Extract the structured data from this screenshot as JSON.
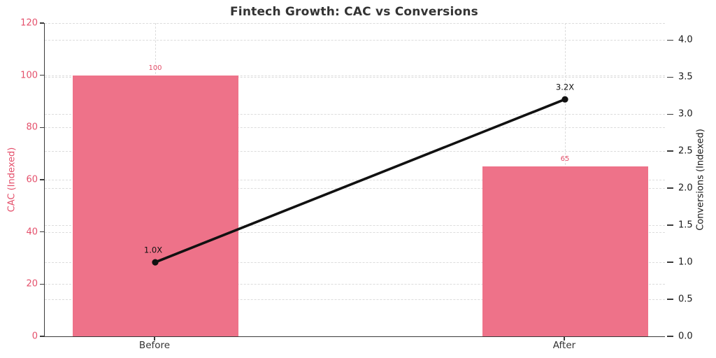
{
  "title": "Fintech Growth: CAC vs Conversions",
  "chart_data": {
    "type": "bar",
    "subtype": "combo-bar-line-dual-axis",
    "categories": [
      "Before",
      "After"
    ],
    "series": [
      {
        "name": "CAC (Indexed)",
        "type": "bar",
        "axis": "left",
        "values": [
          100,
          65
        ],
        "value_labels": [
          "100",
          "65"
        ],
        "color": "#ee7289"
      },
      {
        "name": "Conversions (Indexed)",
        "type": "line",
        "axis": "right",
        "values": [
          1.0,
          3.2
        ],
        "annotations": [
          "1.0X",
          "3.2X"
        ],
        "color": "#111111",
        "marker": "circle"
      }
    ],
    "left_axis": {
      "label": "CAC (Indexed)",
      "ticks": [
        0,
        20,
        40,
        60,
        80,
        100,
        120
      ],
      "ylim": [
        0,
        120
      ],
      "text_color": "#e4506b"
    },
    "right_axis": {
      "label": "Conversions (Indexed)",
      "ticks": [
        "0.0",
        "0.5",
        "1.0",
        "1.5",
        "2.0",
        "2.5",
        "3.0",
        "3.5",
        "4.0"
      ],
      "ylim": [
        0,
        4.23
      ],
      "text_color": "#1a1a1a"
    },
    "grid": "dashed horizontal for both axes, dashed vertical at category centers",
    "legend": "none",
    "colors": {
      "bar_fill": "#ee7289",
      "line": "#111111",
      "pink_text": "#e4506b",
      "grid": "#dcdcdc",
      "spine": "#3a3a3a",
      "title_text": "#333333"
    }
  }
}
